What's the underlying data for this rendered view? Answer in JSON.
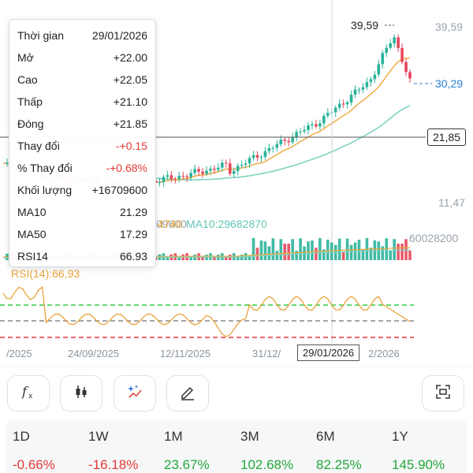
{
  "tooltip": {
    "rows": [
      {
        "label": "Thời gian",
        "value": "29/01/2026",
        "tone": "normal"
      },
      {
        "label": "Mở",
        "value": "+22.00",
        "tone": "normal"
      },
      {
        "label": "Cao",
        "value": "+22.05",
        "tone": "normal"
      },
      {
        "label": "Thấp",
        "value": "+21.10",
        "tone": "normal"
      },
      {
        "label": "Đóng",
        "value": "+21.85",
        "tone": "normal"
      },
      {
        "label": "Thay đổi",
        "value": "-+0.15",
        "tone": "neg"
      },
      {
        "label": "% Thay đổi",
        "value": "-+0.68%",
        "tone": "neg"
      },
      {
        "label": "Khối lượng",
        "value": "+16709600",
        "tone": "normal"
      },
      {
        "label": "MA10",
        "value": "21.29",
        "tone": "normal"
      },
      {
        "label": "MA50",
        "value": "17.29",
        "tone": "normal"
      },
      {
        "label": "RSI14",
        "value": "66.93",
        "tone": "normal"
      }
    ]
  },
  "price_axis": {
    "top": "39,59",
    "last": "30,29",
    "cross": "21,85",
    "bottom": "11,47",
    "high_marker": "39,59"
  },
  "volume": {
    "max_label": "60028200",
    "ma_legend_partial": "09600",
    "ma5_partial": "4740",
    "ma10_label": "MA10:29682870"
  },
  "rsi": {
    "legend": "RSI(14):66,93"
  },
  "dates": {
    "d0": "/2025",
    "d1": "24/09/2025",
    "d2": "12/11/2025",
    "d3": "31/12/",
    "d4": "2/2026",
    "cross": "29/01/2026"
  },
  "colors": {
    "up": "#2bb39a",
    "down": "#e5475a",
    "ma10": "#f0a83a",
    "ma50": "#7fd4c4",
    "rsi_line": "#e9a23b",
    "overbought": "#2ecc40",
    "oversold": "#e53935",
    "midline": "#888888",
    "last_price": "#2a7fd4"
  },
  "toolbar": {
    "buttons": [
      {
        "icon": "function-icon"
      },
      {
        "icon": "candlestick-icon"
      },
      {
        "icon": "magic-icon"
      },
      {
        "icon": "draw-icon"
      },
      {
        "icon": "screenshot-icon"
      }
    ]
  },
  "performance": [
    {
      "period": "1D",
      "change": "-0.66%",
      "tone": "neg"
    },
    {
      "period": "1W",
      "change": "-16.18%",
      "tone": "neg"
    },
    {
      "period": "1M",
      "change": "23.67%",
      "tone": "pos"
    },
    {
      "period": "3M",
      "change": "102.68%",
      "tone": "pos"
    },
    {
      "period": "6M",
      "change": "82.25%",
      "tone": "pos"
    },
    {
      "period": "1Y",
      "change": "145.90%",
      "tone": "pos"
    }
  ]
}
